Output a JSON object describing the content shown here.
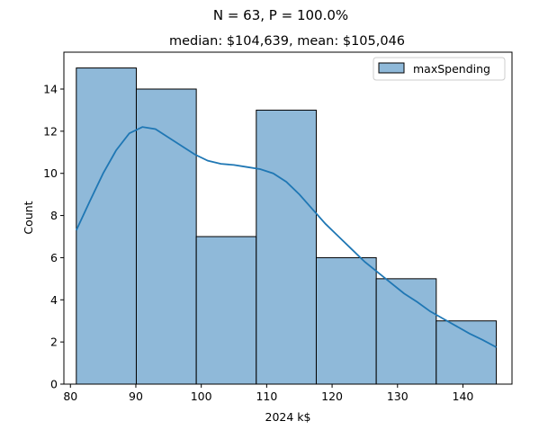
{
  "chart_data": {
    "type": "histogram",
    "suptitle": "N = 63, P = 100.0%",
    "title": "median: $104,639,  mean: $105,046",
    "xlabel": "2024 k$",
    "ylabel": "Count",
    "xlim": [
      79,
      147.5
    ],
    "ylim": [
      0,
      15.75
    ],
    "xticks": [
      80,
      90,
      100,
      110,
      120,
      130,
      140
    ],
    "yticks": [
      0,
      2,
      4,
      6,
      8,
      10,
      12,
      14
    ],
    "bin_edges": [
      80.9,
      90.07,
      99.24,
      108.41,
      117.58,
      126.75,
      135.92,
      145.1
    ],
    "series": [
      {
        "name": "maxSpending",
        "counts": [
          15,
          14,
          7,
          13,
          6,
          5,
          3
        ],
        "kde": {
          "x": [
            80.9,
            83,
            85,
            87,
            89,
            91,
            93,
            95,
            97,
            99,
            101,
            103,
            105,
            107,
            109,
            111,
            113,
            115,
            117,
            119,
            121,
            123,
            125,
            127,
            129,
            131,
            133,
            135,
            137,
            139,
            141,
            143,
            145.1
          ],
          "y": [
            7.3,
            8.7,
            10.0,
            11.1,
            11.9,
            12.2,
            12.1,
            11.7,
            11.3,
            10.9,
            10.6,
            10.45,
            10.4,
            10.3,
            10.2,
            10.0,
            9.6,
            9.0,
            8.3,
            7.6,
            7.0,
            6.4,
            5.8,
            5.3,
            4.8,
            4.3,
            3.9,
            3.45,
            3.1,
            2.75,
            2.4,
            2.1,
            1.75
          ]
        }
      }
    ],
    "grid": false,
    "legend_position": "top-right",
    "colors": {
      "bar_fill": "#8fb9d9",
      "bar_edge": "#000000",
      "kde_line": "#1f77b4"
    }
  }
}
